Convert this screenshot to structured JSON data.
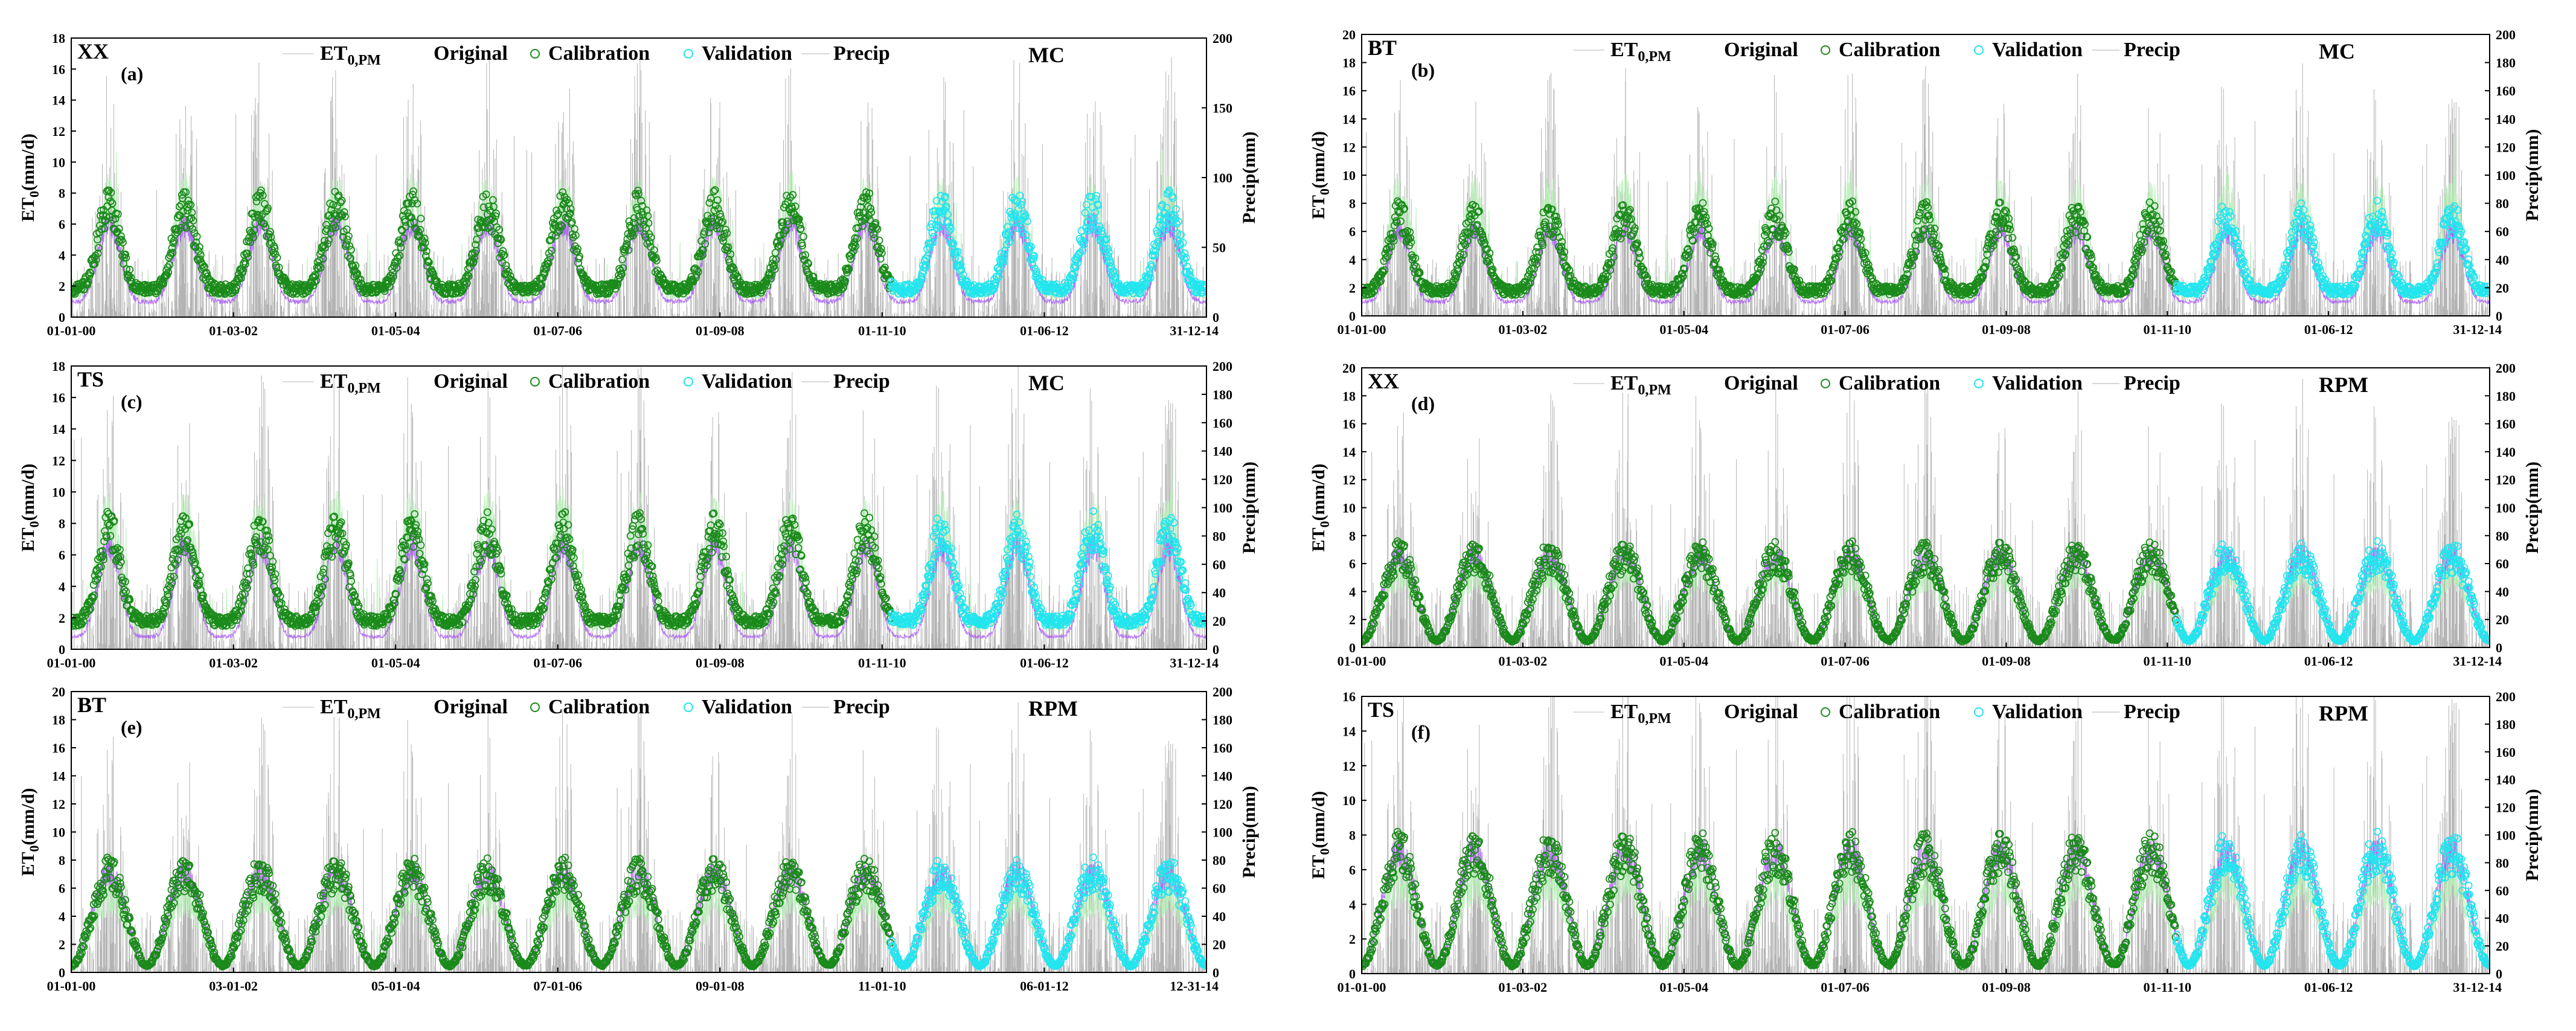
{
  "chart_data": [
    {
      "type": "line",
      "panel": "(a)",
      "station": "XX",
      "method": "MC",
      "ylabel_left": "ET0(mm/d)",
      "ylabel_right": "Precip(mm)",
      "ylim_left": [
        0,
        18
      ],
      "yticks_left": [
        0,
        2,
        4,
        6,
        8,
        10,
        12,
        14,
        16,
        18
      ],
      "ylim_right": [
        0,
        200
      ],
      "yticks_right": [
        0,
        50,
        100,
        150,
        200
      ],
      "xticks": [
        "01-01-00",
        "01-03-02",
        "01-05-04",
        "01-07-06",
        "01-09-08",
        "01-11-10",
        "01-06-12",
        "31-12-14"
      ],
      "calibration_period": [
        "2000",
        "2010-11"
      ],
      "validation_period": [
        "2010-11",
        "2014-12"
      ],
      "seasonal_pattern": {
        "et0pm_low": 1.5,
        "et0pm_peak": 10.0,
        "original_low": 1.0,
        "original_peak": 6.0,
        "model_low": 1.8,
        "model_peak": 7.0,
        "shape": "plateau"
      },
      "precip_peak": 150,
      "legend": [
        "ET0,PM",
        "Original",
        "Calibration",
        "Validation",
        "Precip"
      ]
    },
    {
      "type": "line",
      "panel": "(b)",
      "station": "BT",
      "method": "MC",
      "ylabel_left": "ET0(mm/d)",
      "ylabel_right": "Precip(mm)",
      "ylim_left": [
        0,
        20
      ],
      "yticks_left": [
        0,
        2,
        4,
        6,
        8,
        10,
        12,
        14,
        16,
        18,
        20
      ],
      "ylim_right": [
        0,
        200
      ],
      "yticks_right": [
        0,
        20,
        40,
        60,
        80,
        100,
        120,
        140,
        160,
        180,
        200
      ],
      "xticks": [
        "01-01-00",
        "01-03-02",
        "01-05-04",
        "01-07-06",
        "01-09-08",
        "01-11-10",
        "01-06-12",
        "31-12-14"
      ],
      "calibration_period": [
        "2000",
        "2010-11"
      ],
      "validation_period": [
        "2010-11",
        "2014-12"
      ],
      "seasonal_pattern": {
        "et0pm_low": 1.5,
        "et0pm_peak": 11.0,
        "original_low": 1.0,
        "original_peak": 6.0,
        "model_low": 1.8,
        "model_peak": 7.0,
        "shape": "plateau"
      },
      "precip_peak": 140,
      "legend": [
        "ET0,PM",
        "Original",
        "Calibration",
        "Validation",
        "Precip"
      ]
    },
    {
      "type": "line",
      "panel": "(c)",
      "station": "TS",
      "method": "MC",
      "ylabel_left": "ET0(mm/d)",
      "ylabel_right": "Precip(mm)",
      "ylim_left": [
        0,
        18
      ],
      "yticks_left": [
        0,
        2,
        4,
        6,
        8,
        10,
        12,
        14,
        16,
        18
      ],
      "ylim_right": [
        0,
        200
      ],
      "yticks_right": [
        0,
        20,
        40,
        60,
        80,
        100,
        120,
        140,
        160,
        180,
        200
      ],
      "xticks": [
        "01-01-00",
        "01-03-02",
        "01-05-04",
        "01-07-06",
        "01-09-08",
        "01-11-10",
        "01-06-12",
        "31-12-14"
      ],
      "calibration_period": [
        "2000",
        "2010-11"
      ],
      "validation_period": [
        "2010-11",
        "2014-12"
      ],
      "seasonal_pattern": {
        "et0pm_low": 1.5,
        "et0pm_peak": 11.0,
        "original_low": 0.8,
        "original_peak": 6.5,
        "model_low": 1.8,
        "model_peak": 7.5,
        "shape": "plateau"
      },
      "precip_peak": 160,
      "legend": [
        "ET0,PM",
        "Original",
        "Calibration",
        "Validation",
        "Precip"
      ]
    },
    {
      "type": "line",
      "panel": "(d)",
      "station": "XX",
      "method": "RPM",
      "ylabel_left": "ET0(mm/d)",
      "ylabel_right": "Precip(mm)",
      "ylim_left": [
        0,
        20
      ],
      "yticks_left": [
        0,
        2,
        4,
        6,
        8,
        10,
        12,
        14,
        16,
        18,
        20
      ],
      "ylim_right": [
        0,
        200
      ],
      "yticks_right": [
        0,
        20,
        40,
        60,
        80,
        100,
        120,
        140,
        160,
        180,
        200
      ],
      "xticks": [
        "01-01-00",
        "01-03-02",
        "01-05-04",
        "01-07-06",
        "01-09-08",
        "01-11-10",
        "01-06-12",
        "31-12-14"
      ],
      "calibration_period": [
        "2000",
        "2010-11"
      ],
      "validation_period": [
        "2010-11",
        "2014-12"
      ],
      "seasonal_pattern": {
        "et0pm_low": 0.5,
        "et0pm_peak": 7.0,
        "original_low": 0.5,
        "original_peak": 6.5,
        "model_low": 0.5,
        "model_peak": 6.5,
        "shape": "sine"
      },
      "precip_peak": 150,
      "legend": [
        "ET0,PM",
        "Original",
        "Calibration",
        "Validation",
        "Precip"
      ]
    },
    {
      "type": "line",
      "panel": "(e)",
      "station": "BT",
      "method": "RPM",
      "ylabel_left": "ET0(mm/d)",
      "ylabel_right": "Precip(mm)",
      "ylim_left": [
        0,
        20
      ],
      "yticks_left": [
        0,
        2,
        4,
        6,
        8,
        10,
        12,
        14,
        16,
        18,
        20
      ],
      "ylim_right": [
        0,
        200
      ],
      "yticks_right": [
        0,
        20,
        40,
        60,
        80,
        100,
        120,
        140,
        160,
        180,
        200
      ],
      "xticks": [
        "01-01-00",
        "03-01-02",
        "05-01-04",
        "07-01-06",
        "09-01-08",
        "11-01-10",
        "06-01-12",
        "12-31-14"
      ],
      "calibration_period": [
        "2000",
        "2010-11"
      ],
      "validation_period": [
        "2010-11",
        "2014-12"
      ],
      "seasonal_pattern": {
        "et0pm_low": 0.5,
        "et0pm_peak": 7.0,
        "original_low": 0.5,
        "original_peak": 7.0,
        "model_low": 0.5,
        "model_peak": 7.0,
        "shape": "sine"
      },
      "precip_peak": 150,
      "legend": [
        "ET0,PM",
        "Original",
        "Calibration",
        "Validation",
        "Precip"
      ]
    },
    {
      "type": "line",
      "panel": "(f)",
      "station": "TS",
      "method": "RPM",
      "ylabel_left": "ET0(mm/d)",
      "ylabel_right": "Precip(mm)",
      "ylim_left": [
        0,
        16
      ],
      "yticks_left": [
        0,
        2,
        4,
        6,
        8,
        10,
        12,
        14,
        16
      ],
      "ylim_right": [
        0,
        200
      ],
      "yticks_right": [
        0,
        20,
        40,
        60,
        80,
        100,
        120,
        140,
        160,
        180,
        200
      ],
      "xticks": [
        "01-01-00",
        "01-03-02",
        "01-05-04",
        "01-07-06",
        "01-09-08",
        "01-11-10",
        "01-06-12",
        "31-12-14"
      ],
      "calibration_period": [
        "2000",
        "2010-11"
      ],
      "validation_period": [
        "2010-11",
        "2014-12"
      ],
      "seasonal_pattern": {
        "et0pm_low": 0.5,
        "et0pm_peak": 7.0,
        "original_low": 0.5,
        "original_peak": 7.0,
        "model_low": 0.5,
        "model_peak": 7.0,
        "shape": "sine"
      },
      "precip_peak": 180,
      "legend": [
        "ET0,PM",
        "Original",
        "Calibration",
        "Validation",
        "Precip"
      ]
    }
  ],
  "colors": {
    "et0pm": "#b8f0b8",
    "original": "#a855f7",
    "calibration": "#1a8a1a",
    "validation": "#22e5ee",
    "precip": "#9a9a9a",
    "axis": "#000000"
  }
}
